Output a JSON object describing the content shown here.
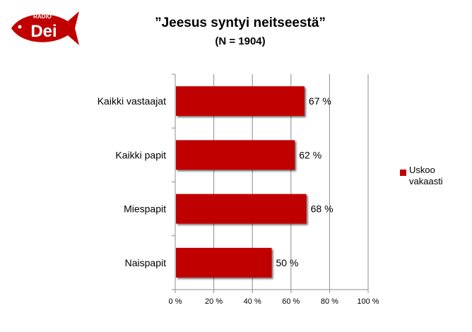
{
  "logo": {
    "top_text": "RADIO",
    "main_text": "Dei",
    "color": "#c00000"
  },
  "chart_data": {
    "type": "bar",
    "orientation": "horizontal",
    "title": "”Jeesus syntyi neitseestä”",
    "subtitle": "(N = 1904)",
    "categories": [
      "Kaikki vastaajat",
      "Kaikki papit",
      "Miespapit",
      "Naispapit"
    ],
    "series": [
      {
        "name": "Uskoo vakaasti",
        "values": [
          67,
          62,
          68,
          50
        ],
        "value_labels": [
          "67 %",
          "62 %",
          "68 %",
          "50 %"
        ],
        "color": "#c00000"
      }
    ],
    "xlim": [
      0,
      100
    ],
    "x_ticks": [
      0,
      20,
      40,
      60,
      80,
      100
    ],
    "x_tick_labels": [
      "0 %",
      "20 %",
      "40 %",
      "60 %",
      "80 %",
      "100 %"
    ],
    "grid": "vertical",
    "legend_position": "right"
  }
}
